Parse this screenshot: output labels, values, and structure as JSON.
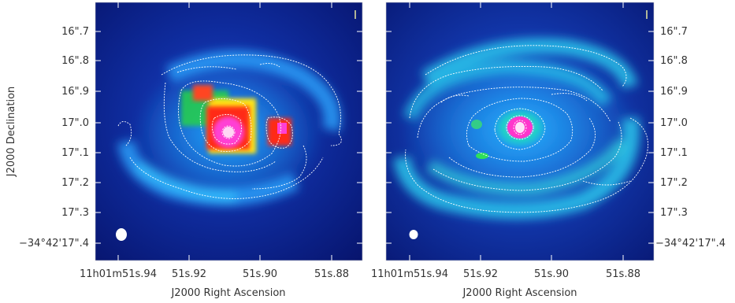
{
  "panels": [
    {
      "name": "left",
      "yticks": [
        "16\".7",
        "16\".8",
        "16\".9",
        "17\".0",
        "17\".1",
        "17\".2",
        "17\".3",
        "−34°42'17\".4"
      ],
      "xticks": [
        "11h01m51s.94",
        "51s.92",
        "51s.90",
        "51s.88"
      ]
    },
    {
      "name": "right",
      "yticks": [
        "16\".7",
        "16\".8",
        "16\".9",
        "17\".0",
        "17\".1",
        "17\".2",
        "17\".3",
        "−34°42'17\".4"
      ],
      "xticks": [
        "11h01m51s.94",
        "51s.92",
        "51s.90",
        "51s.88"
      ]
    }
  ],
  "labels": {
    "xlabel_left": "J2000 Right Ascension",
    "xlabel_right": "J2000 Right Ascension",
    "ylabel": "J2000 Declination"
  },
  "colors": {
    "background_sky": "#0b1a7a",
    "contour": "#ffffff",
    "tick": "#ffffff"
  }
}
